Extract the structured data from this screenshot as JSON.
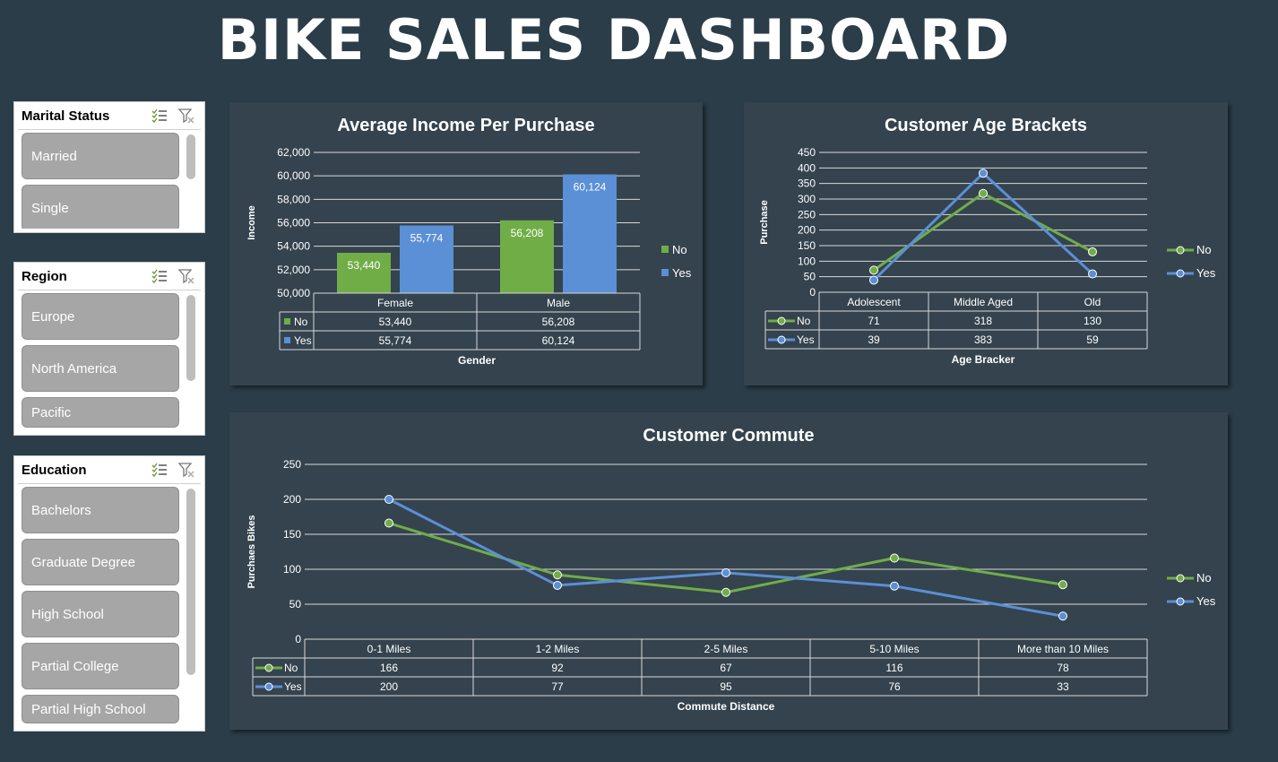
{
  "dashboard": {
    "title": "BIKE SALES DASHBOARD"
  },
  "slicers": [
    {
      "title": "Marital Status",
      "items": [
        "Married",
        "Single"
      ]
    },
    {
      "title": "Region",
      "items": [
        "Europe",
        "North America",
        "Pacific"
      ]
    },
    {
      "title": "Education",
      "items": [
        "Bachelors",
        "Graduate Degree",
        "High School",
        "Partial College",
        "Partial High School"
      ]
    }
  ],
  "colors": {
    "no": "#70ad47",
    "yes": "#5b8fd6",
    "panel": "#34434e",
    "background": "#2a3d48"
  },
  "chart_data": [
    {
      "type": "bar",
      "title": "Average Income Per Purchase",
      "xlabel": "Gender",
      "ylabel": "Income",
      "categories": [
        "Female",
        "Male"
      ],
      "series": [
        {
          "name": "No",
          "values": [
            53440,
            56208
          ],
          "labels": [
            "53,440",
            "56,208"
          ]
        },
        {
          "name": "Yes",
          "values": [
            55774,
            60124
          ],
          "labels": [
            "55,774",
            "60,124"
          ]
        }
      ],
      "ylim": [
        50000,
        62000
      ],
      "yticks": [
        "50,000",
        "52,000",
        "54,000",
        "56,000",
        "58,000",
        "60,000",
        "62,000"
      ],
      "grid": true,
      "legend": "right",
      "data_table": true
    },
    {
      "type": "line",
      "title": "Customer Age Brackets",
      "xlabel": "Age Bracker",
      "ylabel": "Purchase",
      "categories": [
        "Adolescent",
        "Middle Aged",
        "Old"
      ],
      "series": [
        {
          "name": "No",
          "values": [
            71,
            318,
            130
          ]
        },
        {
          "name": "Yes",
          "values": [
            39,
            383,
            59
          ]
        }
      ],
      "ylim": [
        0,
        450
      ],
      "yticks": [
        "0",
        "50",
        "100",
        "150",
        "200",
        "250",
        "300",
        "350",
        "400",
        "450"
      ],
      "grid": true,
      "legend": "right",
      "data_table": true
    },
    {
      "type": "line",
      "title": "Customer Commute",
      "xlabel": "Commute Distance",
      "ylabel": "Purchaes Bikes",
      "categories": [
        "0-1 Miles",
        "1-2 Miles",
        "2-5 Miles",
        "5-10 Miles",
        "More than 10 Miles"
      ],
      "series": [
        {
          "name": "No",
          "values": [
            166,
            92,
            67,
            116,
            78
          ]
        },
        {
          "name": "Yes",
          "values": [
            200,
            77,
            95,
            76,
            33
          ]
        }
      ],
      "ylim": [
        0,
        250
      ],
      "yticks": [
        "0",
        "50",
        "100",
        "150",
        "200",
        "250"
      ],
      "grid": true,
      "legend": "right",
      "data_table": true
    }
  ]
}
